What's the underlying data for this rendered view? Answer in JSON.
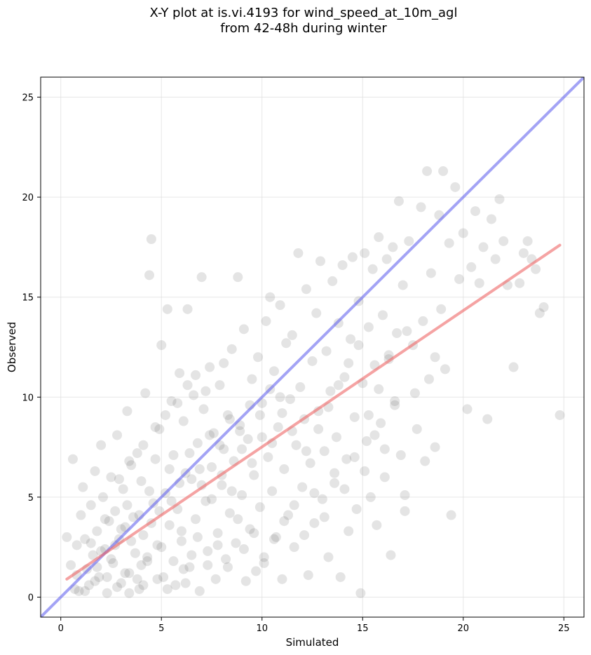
{
  "chart_data": {
    "type": "scatter",
    "title_line1": "X-Y plot at is.vi.4193 for wind_speed_at_10m_agl",
    "title_line2": "from 42-48h during winter",
    "xlabel": "Simulated",
    "ylabel": "Observed",
    "xlim": [
      -1,
      26
    ],
    "ylim": [
      -1,
      26
    ],
    "xticks": [
      0,
      5,
      10,
      15,
      20,
      25
    ],
    "yticks": [
      0,
      5,
      10,
      15,
      20,
      25
    ],
    "grid": true,
    "colors": {
      "points": "#555555",
      "identity_line": "#6666ee",
      "fit_line": "#ee6666"
    },
    "identity_line": {
      "x": [
        -1,
        26
      ],
      "y": [
        -1,
        26
      ]
    },
    "fit_line": {
      "x": [
        0.3,
        24.8
      ],
      "y": [
        0.9,
        17.6
      ]
    },
    "points": [
      [
        0.3,
        3.0
      ],
      [
        0.5,
        1.6
      ],
      [
        0.6,
        6.9
      ],
      [
        0.7,
        0.4
      ],
      [
        0.8,
        2.6
      ],
      [
        0.9,
        0.3
      ],
      [
        1.0,
        4.1
      ],
      [
        1.1,
        5.5
      ],
      [
        1.2,
        2.9
      ],
      [
        1.3,
        1.4
      ],
      [
        1.4,
        0.6
      ],
      [
        1.5,
        4.6
      ],
      [
        1.6,
        2.1
      ],
      [
        1.7,
        6.3
      ],
      [
        1.8,
        3.3
      ],
      [
        1.9,
        1.0
      ],
      [
        2.0,
        7.6
      ],
      [
        2.1,
        5.0
      ],
      [
        2.2,
        2.4
      ],
      [
        2.3,
        0.2
      ],
      [
        2.4,
        3.8
      ],
      [
        2.5,
        6.0
      ],
      [
        2.6,
        1.7
      ],
      [
        2.7,
        4.3
      ],
      [
        2.8,
        8.1
      ],
      [
        2.9,
        2.9
      ],
      [
        3.0,
        0.7
      ],
      [
        3.1,
        5.4
      ],
      [
        3.2,
        3.5
      ],
      [
        3.3,
        9.3
      ],
      [
        3.4,
        1.2
      ],
      [
        3.5,
        6.6
      ],
      [
        3.6,
        4.0
      ],
      [
        3.7,
        2.2
      ],
      [
        3.8,
        7.2
      ],
      [
        3.9,
        0.4
      ],
      [
        4.0,
        5.8
      ],
      [
        4.1,
        3.1
      ],
      [
        4.2,
        10.2
      ],
      [
        4.3,
        1.8
      ],
      [
        4.4,
        16.1
      ],
      [
        4.5,
        17.9
      ],
      [
        4.6,
        4.7
      ],
      [
        4.7,
        6.9
      ],
      [
        4.8,
        2.6
      ],
      [
        4.9,
        8.4
      ],
      [
        5.0,
        12.6
      ],
      [
        5.1,
        1.0
      ],
      [
        5.2,
        5.2
      ],
      [
        5.3,
        14.4
      ],
      [
        5.4,
        3.6
      ],
      [
        5.5,
        9.8
      ],
      [
        5.6,
        7.1
      ],
      [
        5.7,
        0.6
      ],
      [
        5.8,
        4.4
      ],
      [
        5.9,
        11.2
      ],
      [
        6.0,
        2.8
      ],
      [
        6.1,
        8.8
      ],
      [
        6.2,
        6.2
      ],
      [
        6.3,
        14.4
      ],
      [
        6.4,
        1.5
      ],
      [
        6.5,
        5.9
      ],
      [
        6.6,
        10.1
      ],
      [
        6.7,
        3.9
      ],
      [
        6.8,
        7.7
      ],
      [
        6.9,
        0.3
      ],
      [
        7.0,
        16.0
      ],
      [
        7.1,
        9.4
      ],
      [
        7.2,
        4.8
      ],
      [
        7.3,
        2.3
      ],
      [
        7.4,
        11.5
      ],
      [
        7.5,
        6.5
      ],
      [
        7.6,
        8.2
      ],
      [
        7.7,
        0.9
      ],
      [
        7.8,
        3.2
      ],
      [
        7.9,
        10.6
      ],
      [
        8.0,
        5.6
      ],
      [
        8.1,
        7.4
      ],
      [
        8.2,
        1.9
      ],
      [
        8.3,
        9.1
      ],
      [
        8.4,
        4.2
      ],
      [
        8.5,
        12.4
      ],
      [
        8.6,
        6.8
      ],
      [
        8.7,
        2.7
      ],
      [
        8.8,
        16.0
      ],
      [
        8.9,
        8.6
      ],
      [
        9.0,
        5.1
      ],
      [
        9.1,
        13.4
      ],
      [
        9.2,
        0.8
      ],
      [
        9.3,
        7.9
      ],
      [
        9.4,
        3.4
      ],
      [
        9.5,
        10.9
      ],
      [
        9.6,
        6.1
      ],
      [
        9.7,
        1.3
      ],
      [
        9.8,
        12.0
      ],
      [
        9.9,
        4.5
      ],
      [
        10.0,
        9.7
      ],
      [
        10.1,
        2.0
      ],
      [
        10.2,
        13.8
      ],
      [
        10.3,
        7.0
      ],
      [
        10.4,
        15.0
      ],
      [
        10.5,
        5.3
      ],
      [
        10.6,
        11.3
      ],
      [
        10.7,
        3.0
      ],
      [
        10.8,
        8.5
      ],
      [
        10.9,
        14.6
      ],
      [
        11.0,
        0.9
      ],
      [
        11.1,
        6.4
      ],
      [
        11.2,
        12.7
      ],
      [
        11.3,
        4.1
      ],
      [
        11.4,
        9.9
      ],
      [
        11.5,
        13.1
      ],
      [
        11.6,
        2.5
      ],
      [
        11.7,
        7.6
      ],
      [
        11.8,
        17.2
      ],
      [
        11.9,
        10.5
      ],
      [
        12.0,
        5.5
      ],
      [
        12.1,
        8.9
      ],
      [
        12.2,
        15.4
      ],
      [
        12.3,
        1.1
      ],
      [
        12.4,
        6.7
      ],
      [
        12.5,
        11.8
      ],
      [
        12.6,
        3.7
      ],
      [
        12.7,
        14.2
      ],
      [
        12.8,
        9.3
      ],
      [
        12.9,
        16.8
      ],
      [
        13.0,
        4.9
      ],
      [
        13.1,
        7.3
      ],
      [
        13.2,
        12.3
      ],
      [
        13.3,
        2.0
      ],
      [
        13.4,
        10.3
      ],
      [
        13.5,
        15.8
      ],
      [
        13.6,
        5.7
      ],
      [
        13.7,
        8.0
      ],
      [
        13.8,
        13.7
      ],
      [
        13.9,
        1.0
      ],
      [
        14.0,
        16.6
      ],
      [
        14.1,
        11.0
      ],
      [
        14.2,
        6.9
      ],
      [
        14.3,
        3.3
      ],
      [
        14.4,
        12.9
      ],
      [
        14.5,
        17.0
      ],
      [
        14.6,
        9.0
      ],
      [
        14.7,
        4.4
      ],
      [
        14.8,
        14.8
      ],
      [
        14.9,
        0.2
      ],
      [
        15.0,
        10.7
      ],
      [
        15.1,
        17.2
      ],
      [
        15.2,
        7.8
      ],
      [
        15.3,
        13.5
      ],
      [
        15.4,
        5.0
      ],
      [
        15.5,
        16.4
      ],
      [
        15.6,
        11.6
      ],
      [
        15.7,
        3.6
      ],
      [
        15.8,
        18.0
      ],
      [
        15.9,
        8.7
      ],
      [
        16.0,
        14.1
      ],
      [
        16.1,
        6.0
      ],
      [
        16.2,
        16.9
      ],
      [
        16.3,
        12.1
      ],
      [
        16.4,
        2.1
      ],
      [
        16.5,
        17.5
      ],
      [
        16.6,
        9.6
      ],
      [
        16.7,
        13.2
      ],
      [
        16.8,
        19.8
      ],
      [
        16.9,
        7.1
      ],
      [
        17.0,
        15.6
      ],
      [
        17.1,
        4.3
      ],
      [
        17.3,
        17.8
      ],
      [
        17.5,
        12.6
      ],
      [
        17.7,
        8.4
      ],
      [
        17.9,
        19.5
      ],
      [
        18.0,
        13.8
      ],
      [
        18.2,
        21.3
      ],
      [
        18.3,
        10.9
      ],
      [
        18.4,
        16.2
      ],
      [
        18.6,
        7.5
      ],
      [
        18.8,
        19.1
      ],
      [
        18.9,
        14.4
      ],
      [
        19.0,
        21.3
      ],
      [
        19.1,
        11.4
      ],
      [
        19.3,
        17.7
      ],
      [
        19.4,
        4.1
      ],
      [
        19.6,
        20.5
      ],
      [
        19.8,
        15.9
      ],
      [
        20.0,
        18.2
      ],
      [
        20.2,
        9.4
      ],
      [
        20.4,
        16.5
      ],
      [
        20.6,
        19.3
      ],
      [
        20.8,
        15.7
      ],
      [
        21.0,
        17.5
      ],
      [
        21.2,
        8.9
      ],
      [
        21.4,
        18.9
      ],
      [
        21.6,
        16.9
      ],
      [
        21.8,
        19.9
      ],
      [
        22.0,
        17.8
      ],
      [
        22.2,
        15.6
      ],
      [
        22.5,
        11.5
      ],
      [
        22.8,
        15.7
      ],
      [
        23.0,
        17.2
      ],
      [
        23.2,
        17.8
      ],
      [
        23.4,
        16.9
      ],
      [
        23.6,
        16.4
      ],
      [
        23.8,
        14.2
      ],
      [
        24.0,
        14.5
      ],
      [
        24.8,
        9.1
      ],
      [
        2.0,
        2.3
      ],
      [
        2.5,
        1.9
      ],
      [
        3.0,
        3.4
      ],
      [
        3.5,
        2.8
      ],
      [
        4.0,
        1.6
      ],
      [
        4.5,
        3.7
      ],
      [
        5.0,
        2.5
      ],
      [
        5.5,
        4.8
      ],
      [
        6.0,
        3.3
      ],
      [
        6.5,
        2.1
      ],
      [
        7.0,
        5.6
      ],
      [
        7.5,
        4.9
      ],
      [
        8.0,
        6.1
      ],
      [
        8.5,
        5.3
      ],
      [
        9.0,
        7.4
      ],
      [
        9.5,
        6.7
      ],
      [
        10.0,
        8.0
      ],
      [
        10.5,
        7.7
      ],
      [
        11.0,
        9.2
      ],
      [
        11.5,
        8.3
      ],
      [
        3.2,
        1.2
      ],
      [
        3.8,
        0.9
      ],
      [
        4.3,
        2.0
      ],
      [
        5.6,
        1.8
      ],
      [
        6.2,
        0.7
      ],
      [
        6.8,
        3.0
      ],
      [
        7.3,
        1.6
      ],
      [
        7.8,
        2.6
      ],
      [
        8.3,
        1.5
      ],
      [
        8.8,
        3.9
      ],
      [
        1.5,
        2.7
      ],
      [
        1.8,
        1.5
      ],
      [
        2.2,
        3.9
      ],
      [
        2.7,
        2.6
      ],
      [
        3.3,
        4.6
      ],
      [
        3.9,
        4.1
      ],
      [
        4.4,
        5.3
      ],
      [
        4.9,
        4.3
      ],
      [
        5.4,
        6.4
      ],
      [
        5.9,
        5.7
      ],
      [
        6.4,
        7.2
      ],
      [
        6.9,
        6.4
      ],
      [
        7.4,
        8.1
      ],
      [
        7.9,
        7.6
      ],
      [
        8.4,
        8.9
      ],
      [
        8.9,
        8.3
      ],
      [
        9.4,
        9.6
      ],
      [
        9.9,
        9.1
      ],
      [
        10.4,
        10.4
      ],
      [
        10.9,
        10.0
      ],
      [
        2.9,
        5.9
      ],
      [
        3.4,
        6.8
      ],
      [
        4.1,
        7.6
      ],
      [
        4.7,
        8.5
      ],
      [
        5.2,
        9.1
      ],
      [
        5.8,
        9.7
      ],
      [
        6.3,
        10.6
      ],
      [
        6.7,
        11.1
      ],
      [
        7.2,
        10.3
      ],
      [
        8.1,
        11.7
      ],
      [
        9.1,
        2.4
      ],
      [
        9.6,
        3.2
      ],
      [
        10.1,
        1.7
      ],
      [
        10.6,
        2.9
      ],
      [
        11.1,
        3.8
      ],
      [
        11.6,
        4.6
      ],
      [
        12.1,
        3.1
      ],
      [
        12.6,
        5.2
      ],
      [
        13.1,
        4.0
      ],
      [
        13.6,
        6.2
      ],
      [
        14.1,
        5.4
      ],
      [
        14.6,
        7.0
      ],
      [
        15.1,
        6.3
      ],
      [
        15.6,
        8.1
      ],
      [
        16.1,
        7.4
      ],
      [
        16.6,
        9.8
      ],
      [
        17.1,
        5.1
      ],
      [
        17.6,
        10.2
      ],
      [
        18.1,
        6.8
      ],
      [
        18.6,
        12.0
      ],
      [
        0.8,
        1.1
      ],
      [
        1.2,
        0.3
      ],
      [
        1.7,
        0.8
      ],
      [
        2.3,
        1.0
      ],
      [
        2.8,
        0.5
      ],
      [
        3.4,
        0.2
      ],
      [
        4.1,
        0.6
      ],
      [
        4.8,
        0.9
      ],
      [
        5.3,
        0.4
      ],
      [
        6.1,
        1.4
      ],
      [
        12.2,
        7.3
      ],
      [
        12.8,
        8.4
      ],
      [
        13.3,
        9.5
      ],
      [
        13.8,
        10.6
      ],
      [
        14.3,
        11.7
      ],
      [
        14.8,
        12.6
      ],
      [
        15.3,
        9.1
      ],
      [
        15.8,
        10.4
      ],
      [
        16.3,
        11.9
      ],
      [
        17.2,
        13.3
      ]
    ]
  }
}
